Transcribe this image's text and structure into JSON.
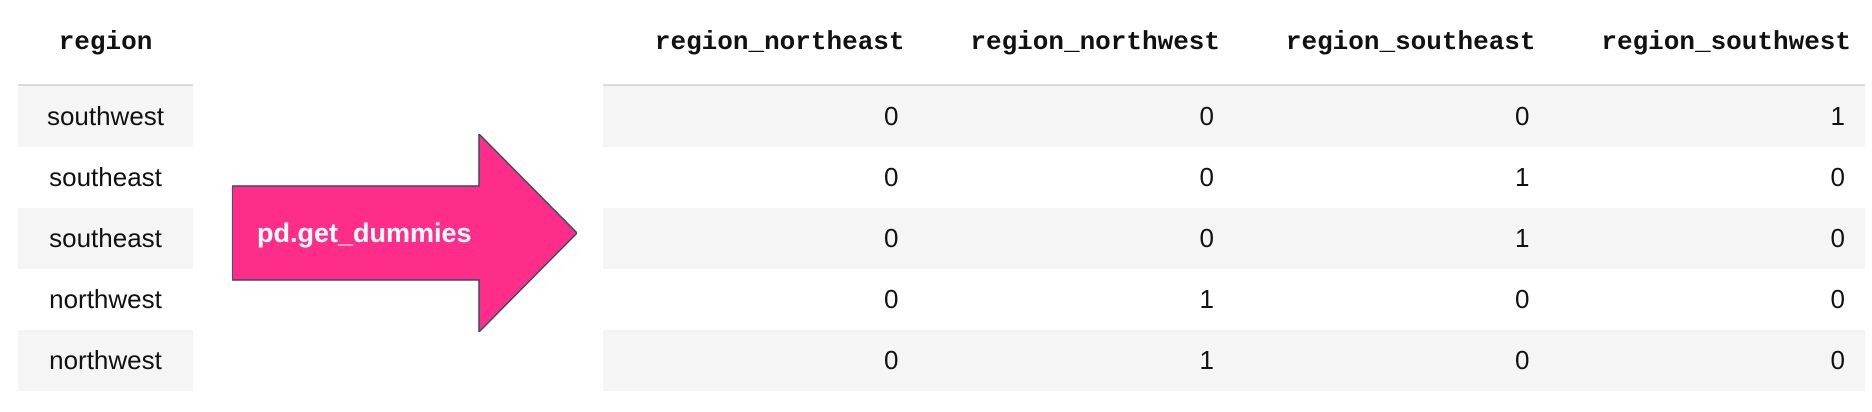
{
  "left_table": {
    "header": "region",
    "rows": [
      "southwest",
      "southeast",
      "southeast",
      "northwest",
      "northwest"
    ]
  },
  "arrow": {
    "label": "pd.get_dummies",
    "color": "#ff2d8a"
  },
  "right_table": {
    "headers": [
      "region_northeast",
      "region_northwest",
      "region_southeast",
      "region_southwest"
    ],
    "rows": [
      [
        "0",
        "0",
        "0",
        "1"
      ],
      [
        "0",
        "0",
        "1",
        "0"
      ],
      [
        "0",
        "0",
        "1",
        "0"
      ],
      [
        "0",
        "1",
        "0",
        "0"
      ],
      [
        "0",
        "1",
        "0",
        "0"
      ]
    ]
  }
}
